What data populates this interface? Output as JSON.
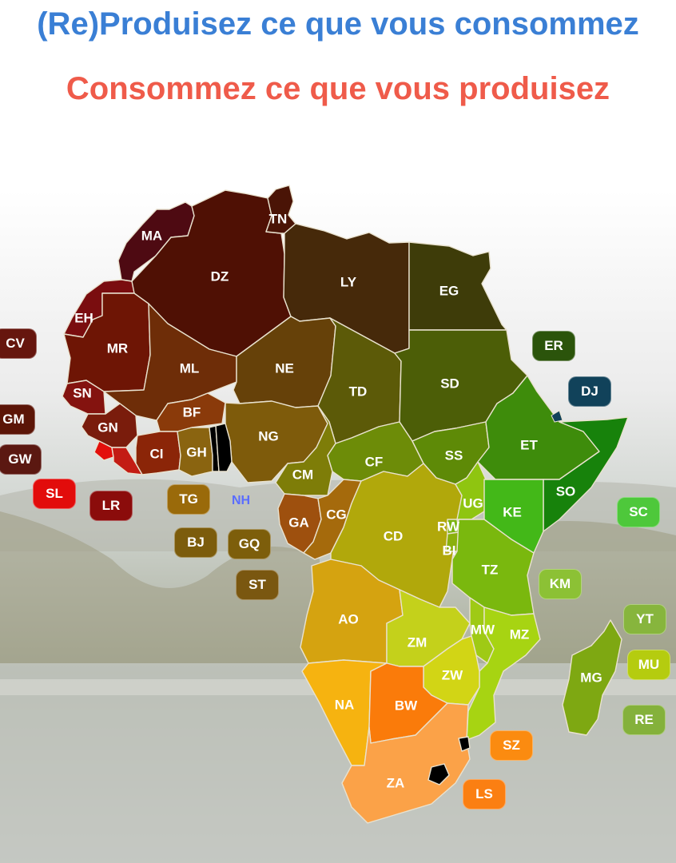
{
  "title_line1": "(Re)Produisez ce que vous consommez",
  "title_line2": "Consommez ce que vous produisez",
  "colors": {
    "title_line1": "#3a7fd5",
    "title_line2": "#ef5b4a",
    "nh": "#5a6dff"
  },
  "countries": {
    "MA": {
      "label": "MA",
      "color": "#4e0a12"
    },
    "DZ": {
      "label": "DZ",
      "color": "#4f1004"
    },
    "TN": {
      "label": "TN",
      "color": "#4a1406"
    },
    "LY": {
      "label": "LY",
      "color": "#46290a"
    },
    "EG": {
      "label": "EG",
      "color": "#3e3c09"
    },
    "EH": {
      "label": "EH",
      "color": "#7a0d0f"
    },
    "MR": {
      "label": "MR",
      "color": "#6e1505"
    },
    "ML": {
      "label": "ML",
      "color": "#6e2d08"
    },
    "NE": {
      "label": "NE",
      "color": "#664109"
    },
    "TD": {
      "label": "TD",
      "color": "#5c5a08"
    },
    "SD": {
      "label": "SD",
      "color": "#4c5e07"
    },
    "SN": {
      "label": "SN",
      "color": "#84130f"
    },
    "GN": {
      "label": "GN",
      "color": "#7a1c0c"
    },
    "BF": {
      "label": "BF",
      "color": "#8a3a0a"
    },
    "NG": {
      "label": "NG",
      "color": "#7e5b0b"
    },
    "CI": {
      "label": "CI",
      "color": "#8b2508"
    },
    "GH": {
      "label": "GH",
      "color": "#8a6410"
    },
    "CM": {
      "label": "CM",
      "color": "#7e7d08"
    },
    "CF": {
      "label": "CF",
      "color": "#6d8c08"
    },
    "SS": {
      "label": "SS",
      "color": "#5e8a07"
    },
    "ET": {
      "label": "ET",
      "color": "#3e8c0b"
    },
    "SO": {
      "label": "SO",
      "color": "#17820b"
    },
    "GA": {
      "label": "GA",
      "color": "#9e500e"
    },
    "CG": {
      "label": "CG",
      "color": "#a56a0c"
    },
    "CD": {
      "label": "CD",
      "color": "#b1a80b"
    },
    "UG": {
      "label": "UG",
      "color": "#8fc510"
    },
    "KE": {
      "label": "KE",
      "color": "#43b818"
    },
    "RW": {
      "label": "RW",
      "color": "#7ab30f"
    },
    "BI": {
      "label": "BI",
      "color": "#8ab00c"
    },
    "TZ": {
      "label": "TZ",
      "color": "#7ab80e"
    },
    "AO": {
      "label": "AO",
      "color": "#d5a310"
    },
    "ZM": {
      "label": "ZM",
      "color": "#c4d11b"
    },
    "MW": {
      "label": "MW",
      "color": "#9fca15"
    },
    "MZ": {
      "label": "MZ",
      "color": "#a7d412"
    },
    "ZW": {
      "label": "ZW",
      "color": "#d2d515"
    },
    "NA": {
      "label": "NA",
      "color": "#f6b310"
    },
    "BW": {
      "label": "BW",
      "color": "#fa7b0a"
    },
    "ZA": {
      "label": "ZA",
      "color": "#fba248"
    },
    "MG": {
      "label": "MG",
      "color": "#7ea812"
    },
    "SL": {
      "label": "SL",
      "color": "#e30f0b"
    },
    "LR": {
      "label": "LR",
      "color": "#c31c14"
    }
  },
  "badges": [
    {
      "code": "CV",
      "color": "#66160e"
    },
    {
      "code": "GM",
      "color": "#5b1507"
    },
    {
      "code": "GW",
      "color": "#5b1811"
    },
    {
      "code": "SL",
      "color": "#e20c0b"
    },
    {
      "code": "LR",
      "color": "#8b0c0b"
    },
    {
      "code": "TG",
      "color": "#9a6a0a"
    },
    {
      "code": "BJ",
      "color": "#7c5c0c"
    },
    {
      "code": "GQ",
      "color": "#7d5e0b"
    },
    {
      "code": "ST",
      "color": "#7a5710"
    },
    {
      "code": "ER",
      "color": "#2b540b"
    },
    {
      "code": "DJ",
      "color": "#11425a"
    },
    {
      "code": "SC",
      "color": "#4ec83b"
    },
    {
      "code": "KM",
      "color": "#8cc135"
    },
    {
      "code": "YT",
      "color": "#87b53d"
    },
    {
      "code": "MU",
      "color": "#b5cc0f"
    },
    {
      "code": "RE",
      "color": "#84b13b"
    },
    {
      "code": "SZ",
      "color": "#fb8b10"
    },
    {
      "code": "LS",
      "color": "#fb7f12"
    }
  ],
  "nh_label": "NH"
}
